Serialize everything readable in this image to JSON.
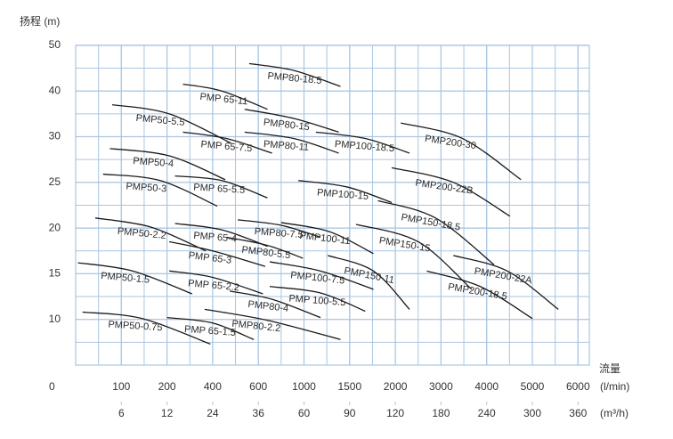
{
  "chart_data": {
    "type": "line",
    "y_label": "扬程 (m)",
    "x_label": "流量",
    "x_unit": "(l/min)",
    "x2_unit": "(m³/h)",
    "origin_label": "0",
    "color": "#1a1a1a",
    "grid": true,
    "grid_color": "#a9c6e2",
    "xlim": [
      0,
      6000
    ],
    "xticks": [
      100,
      200,
      400,
      600,
      1000,
      1500,
      2000,
      3000,
      4000,
      5000,
      6000
    ],
    "x2lim": [
      0,
      360
    ],
    "x2ticks": [
      6,
      12,
      24,
      36,
      60,
      90,
      120,
      180,
      240,
      300,
      360
    ],
    "ylim": [
      5,
      50
    ],
    "yticks": [
      10,
      15,
      20,
      25,
      30,
      40,
      50
    ],
    "series": [
      {
        "name": "PMP80-18.5",
        "x": [
          560,
          910,
          1400
        ],
        "values": [
          46,
          44.5,
          41
        ]
      },
      {
        "name": "PMP 65-11",
        "x": [
          270,
          440,
          680
        ],
        "values": [
          41.5,
          40,
          36
        ]
      },
      {
        "name": "PMP80-15",
        "x": [
          540,
          910,
          1380
        ],
        "values": [
          36,
          34,
          31
        ]
      },
      {
        "name": "PMP50-5.5",
        "x": [
          80,
          210,
          480
        ],
        "values": [
          37,
          35,
          29.3
        ]
      },
      {
        "name": "PMP 65-7.5",
        "x": [
          270,
          460,
          720
        ],
        "values": [
          31,
          29.8,
          28.2
        ]
      },
      {
        "name": "PMP80-11",
        "x": [
          540,
          910,
          1380
        ],
        "values": [
          31,
          29.8,
          28.2
        ]
      },
      {
        "name": "PMP100-18.5",
        "x": [
          1130,
          1670,
          2310
        ],
        "values": [
          31,
          29.8,
          28.2
        ]
      },
      {
        "name": "PMP200-30",
        "x": [
          2120,
          3470,
          4750
        ],
        "values": [
          33,
          29.8,
          25.3
        ]
      },
      {
        "name": "PMP50-4",
        "x": [
          75,
          210,
          455
        ],
        "values": [
          28.7,
          27.9,
          25.3
        ]
      },
      {
        "name": "PMP 65-5.5",
        "x": [
          235,
          440,
          680
        ],
        "values": [
          25.7,
          25.2,
          23.3
        ]
      },
      {
        "name": "PMP50-3",
        "x": [
          60,
          185,
          420
        ],
        "values": [
          25.9,
          25.2,
          22.4
        ]
      },
      {
        "name": "PMP100-15",
        "x": [
          950,
          1470,
          1960
        ],
        "values": [
          25.2,
          24.5,
          22.8
        ]
      },
      {
        "name": "PMP200-22B",
        "x": [
          1960,
          3270,
          4510
        ],
        "values": [
          26.6,
          25,
          21.3
        ]
      },
      {
        "name": "PMP150-18.5",
        "x": [
          1810,
          2880,
          4160
        ],
        "values": [
          23,
          21.1,
          16
        ]
      },
      {
        "name": "PMP50-2.2",
        "x": [
          43,
          165,
          370
        ],
        "values": [
          21.1,
          20.1,
          17.5
        ]
      },
      {
        "name": "PMP 65-4",
        "x": [
          235,
          440,
          680
        ],
        "values": [
          20.5,
          19.8,
          18
        ]
      },
      {
        "name": "PMP80-7.5",
        "x": [
          510,
          800,
          1180
        ],
        "values": [
          20.9,
          20.3,
          19
        ]
      },
      {
        "name": "PMP100-11",
        "x": [
          800,
          1280,
          1760
        ],
        "values": [
          20.6,
          19.6,
          17.2
        ]
      },
      {
        "name": "PMP80-5.5",
        "x": [
          460,
          680,
          990
        ],
        "values": [
          19,
          18.1,
          16.7
        ]
      },
      {
        "name": "PMP 65-3",
        "x": [
          210,
          400,
          660
        ],
        "values": [
          18.5,
          17.5,
          15.8
        ]
      },
      {
        "name": "PMP150-15",
        "x": [
          1570,
          2500,
          3670
        ],
        "values": [
          20.4,
          18.5,
          13.3
        ]
      },
      {
        "name": "PMP50-1.5",
        "x": [
          5,
          125,
          310
        ],
        "values": [
          16.2,
          15.3,
          12.8
        ]
      },
      {
        "name": "PMP 65-2.2",
        "x": [
          210,
          400,
          640
        ],
        "values": [
          15.3,
          14.6,
          12.8
        ]
      },
      {
        "name": "PMP100-7.5",
        "x": [
          700,
          1180,
          1760
        ],
        "values": [
          16.3,
          15.3,
          13.3
        ]
      },
      {
        "name": "PMP150-11",
        "x": [
          1260,
          1760,
          2310
        ],
        "values": [
          17,
          15.3,
          11.1
        ]
      },
      {
        "name": "PMP200-22A",
        "x": [
          3270,
          4450,
          5570
        ],
        "values": [
          17,
          15.3,
          11.1
        ]
      },
      {
        "name": "PMP200-18.5",
        "x": [
          2690,
          3860,
          5000
        ],
        "values": [
          15.3,
          13.6,
          10.1
        ]
      },
      {
        "name": "PMP80-4",
        "x": [
          475,
          720,
          1180
        ],
        "values": [
          13.1,
          12.2,
          10.2
        ]
      },
      {
        "name": "PMP 100-5.5",
        "x": [
          700,
          1180,
          1670
        ],
        "values": [
          13.6,
          12.9,
          10.9
        ]
      },
      {
        "name": "PMP50-0.75",
        "x": [
          15,
          145,
          390
        ],
        "values": [
          10.8,
          10.1,
          7.3
        ]
      },
      {
        "name": "PMP 65-1.5",
        "x": [
          200,
          400,
          580
        ],
        "values": [
          10.2,
          9.6,
          7.8
        ]
      },
      {
        "name": "PMP80-2.2",
        "x": [
          365,
          680,
          1400
        ],
        "values": [
          11.1,
          9.9,
          7.8
        ]
      }
    ]
  }
}
